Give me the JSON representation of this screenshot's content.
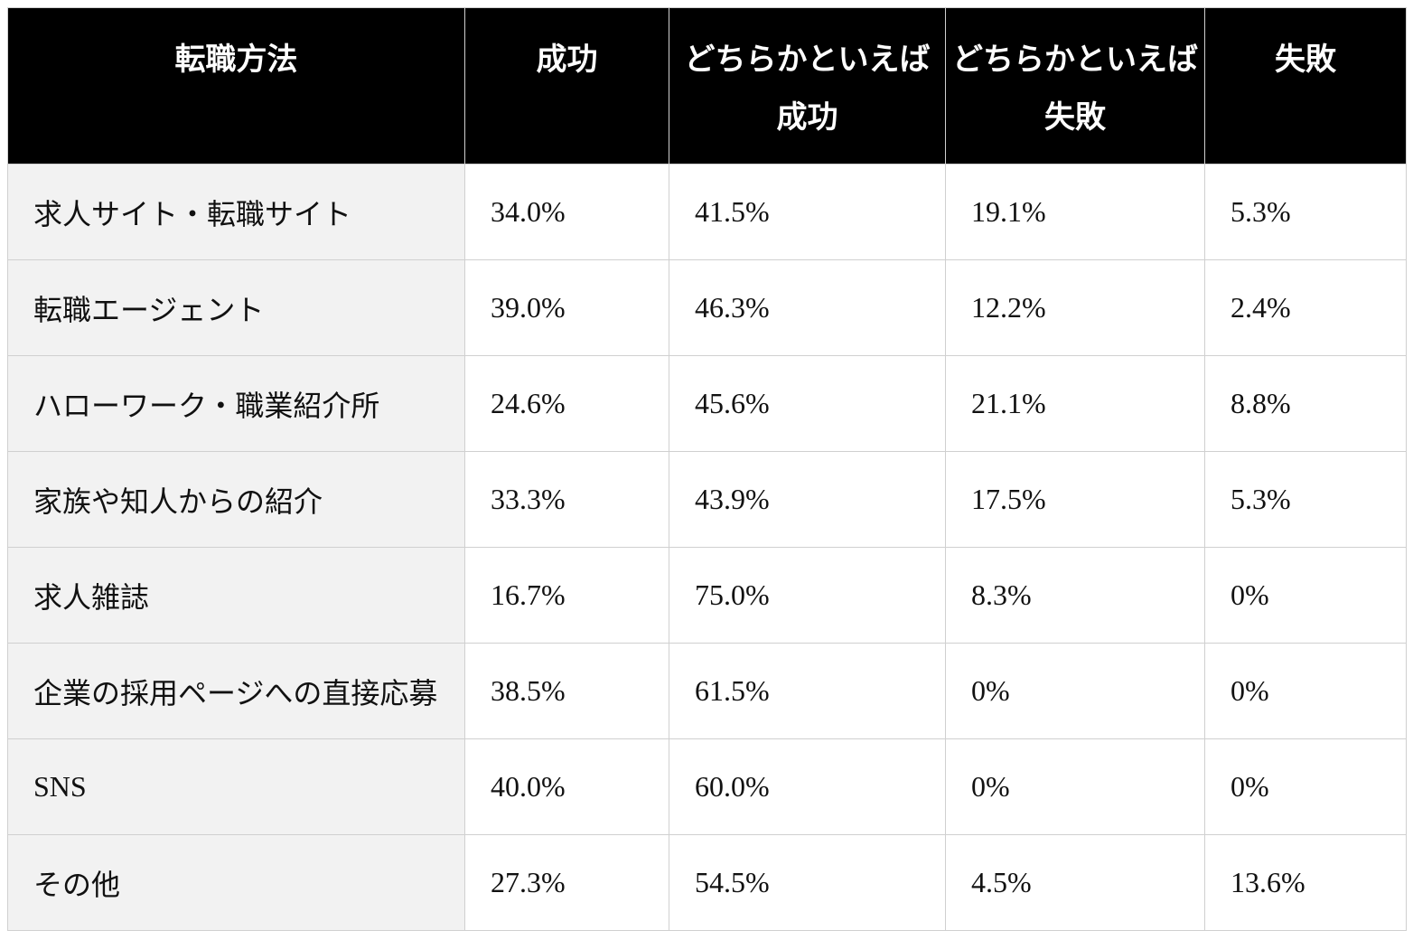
{
  "colors": {
    "header_bg": "#000000",
    "header_text": "#ffffff",
    "label_col_bg": "#f2f2f2",
    "cell_bg": "#ffffff",
    "border": "#d0d0d0",
    "text": "#111111",
    "page_bg": "#ffffff"
  },
  "table": {
    "header_lines": [
      [
        "転職方法"
      ],
      [
        "成功"
      ],
      [
        "どちらかといえば",
        "成功"
      ],
      [
        "どちらかといえば",
        "失敗"
      ],
      [
        "失敗"
      ]
    ]
  },
  "chart_data": {
    "type": "table",
    "columns": [
      "転職方法",
      "成功",
      "どちらかといえば成功",
      "どちらかといえば失敗",
      "失敗"
    ],
    "rows": [
      {
        "method": "求人サイト・転職サイト",
        "values": [
          "34.0%",
          "41.5%",
          "19.1%",
          "5.3%"
        ]
      },
      {
        "method": "転職エージェント",
        "values": [
          "39.0%",
          "46.3%",
          "12.2%",
          "2.4%"
        ]
      },
      {
        "method": "ハローワーク・職業紹介所",
        "values": [
          "24.6%",
          "45.6%",
          "21.1%",
          "8.8%"
        ]
      },
      {
        "method": "家族や知人からの紹介",
        "values": [
          "33.3%",
          "43.9%",
          "17.5%",
          "5.3%"
        ]
      },
      {
        "method": "求人雑誌",
        "values": [
          "16.7%",
          "75.0%",
          "8.3%",
          "0%"
        ]
      },
      {
        "method": "企業の採用ページへの直接応募",
        "values": [
          "38.5%",
          "61.5%",
          "0%",
          "0%"
        ]
      },
      {
        "method": "SNS",
        "values": [
          "40.0%",
          "60.0%",
          "0%",
          "0%"
        ]
      },
      {
        "method": "その他",
        "values": [
          "27.3%",
          "54.5%",
          "4.5%",
          "13.6%"
        ]
      }
    ]
  }
}
